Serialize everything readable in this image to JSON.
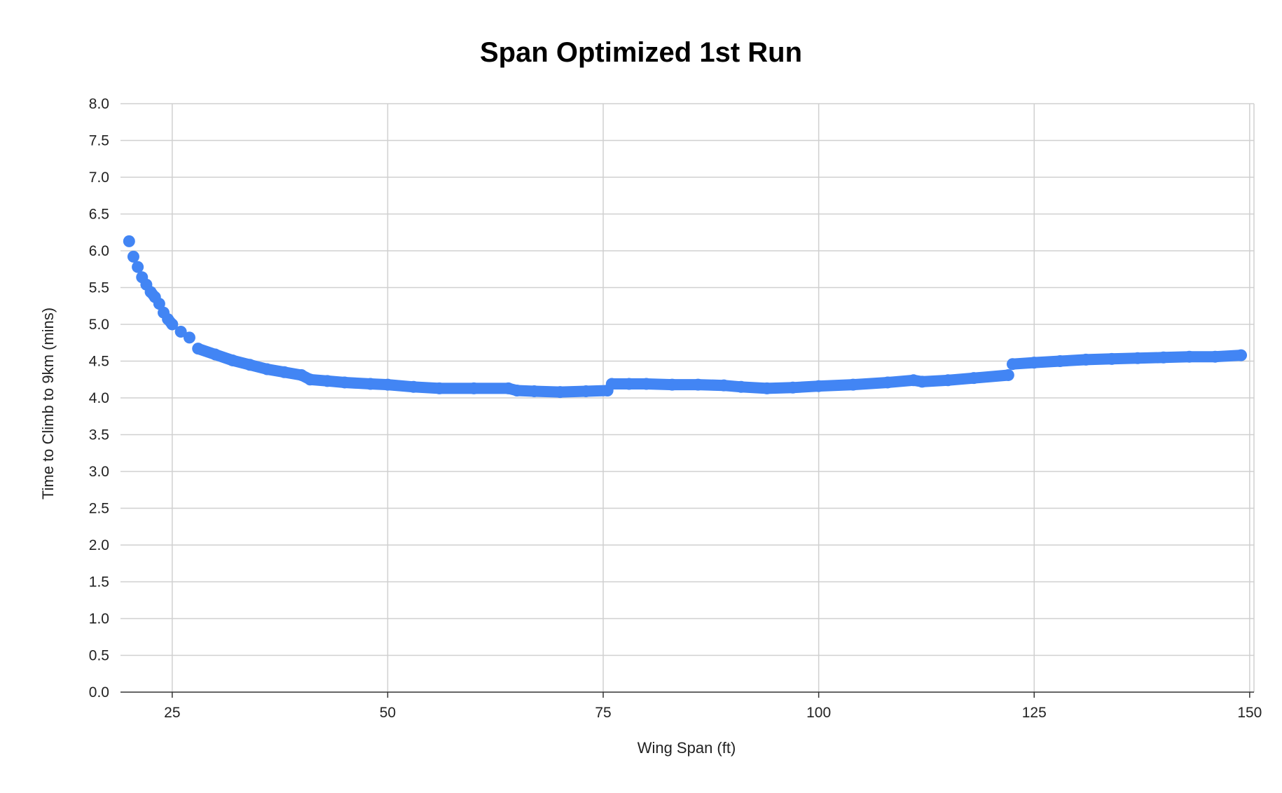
{
  "chart_data": {
    "type": "scatter",
    "title": "Span Optimized 1st Run",
    "xlabel": "Wing Span (ft)",
    "ylabel": "Time to Climb to 9km (mins)",
    "xlim": [
      19,
      150.5
    ],
    "ylim": [
      0,
      8
    ],
    "x_ticks": [
      25,
      50,
      75,
      100,
      125,
      150
    ],
    "x_tick_labels": [
      "25",
      "50",
      "75",
      "100",
      "125",
      "150"
    ],
    "y_ticks": [
      0,
      0.5,
      1,
      1.5,
      2,
      2.5,
      3,
      3.5,
      4,
      4.5,
      5,
      5.5,
      6,
      6.5,
      7,
      7.5,
      8
    ],
    "y_tick_labels": [
      "0.0",
      "0.5",
      "1.0",
      "1.5",
      "2.0",
      "2.5",
      "3.0",
      "3.5",
      "4.0",
      "4.5",
      "5.0",
      "5.5",
      "6.0",
      "6.5",
      "7.0",
      "7.5",
      "8.0"
    ],
    "grid": true,
    "legend": "none",
    "point_color": "#4285F4",
    "series": [
      {
        "x": [
          20,
          20.5,
          21,
          21.5,
          22,
          22.5,
          23,
          23.5,
          24,
          24.5,
          25,
          26,
          27,
          28,
          30,
          32,
          34,
          36,
          38,
          40,
          41,
          43,
          45,
          48,
          50,
          53,
          56,
          60,
          64,
          65,
          67,
          70,
          73,
          75.5,
          76,
          78,
          80,
          83,
          86,
          89,
          91,
          94,
          97,
          100,
          104,
          108,
          111,
          112,
          115,
          118,
          122,
          122.5,
          125,
          128,
          131,
          134,
          137,
          140,
          143,
          146,
          149
        ],
        "y": [
          6.13,
          5.92,
          5.78,
          5.64,
          5.54,
          5.44,
          5.37,
          5.28,
          5.16,
          5.07,
          5.0,
          4.9,
          4.82,
          4.67,
          4.59,
          4.51,
          4.45,
          4.39,
          4.35,
          4.31,
          4.25,
          4.23,
          4.21,
          4.19,
          4.18,
          4.15,
          4.13,
          4.13,
          4.13,
          4.1,
          4.09,
          4.08,
          4.09,
          4.1,
          4.19,
          4.19,
          4.19,
          4.18,
          4.18,
          4.17,
          4.15,
          4.13,
          4.14,
          4.16,
          4.18,
          4.21,
          4.24,
          4.22,
          4.24,
          4.27,
          4.31,
          4.46,
          4.48,
          4.5,
          4.52,
          4.53,
          4.54,
          4.55,
          4.56,
          4.56,
          4.58
        ]
      }
    ]
  }
}
